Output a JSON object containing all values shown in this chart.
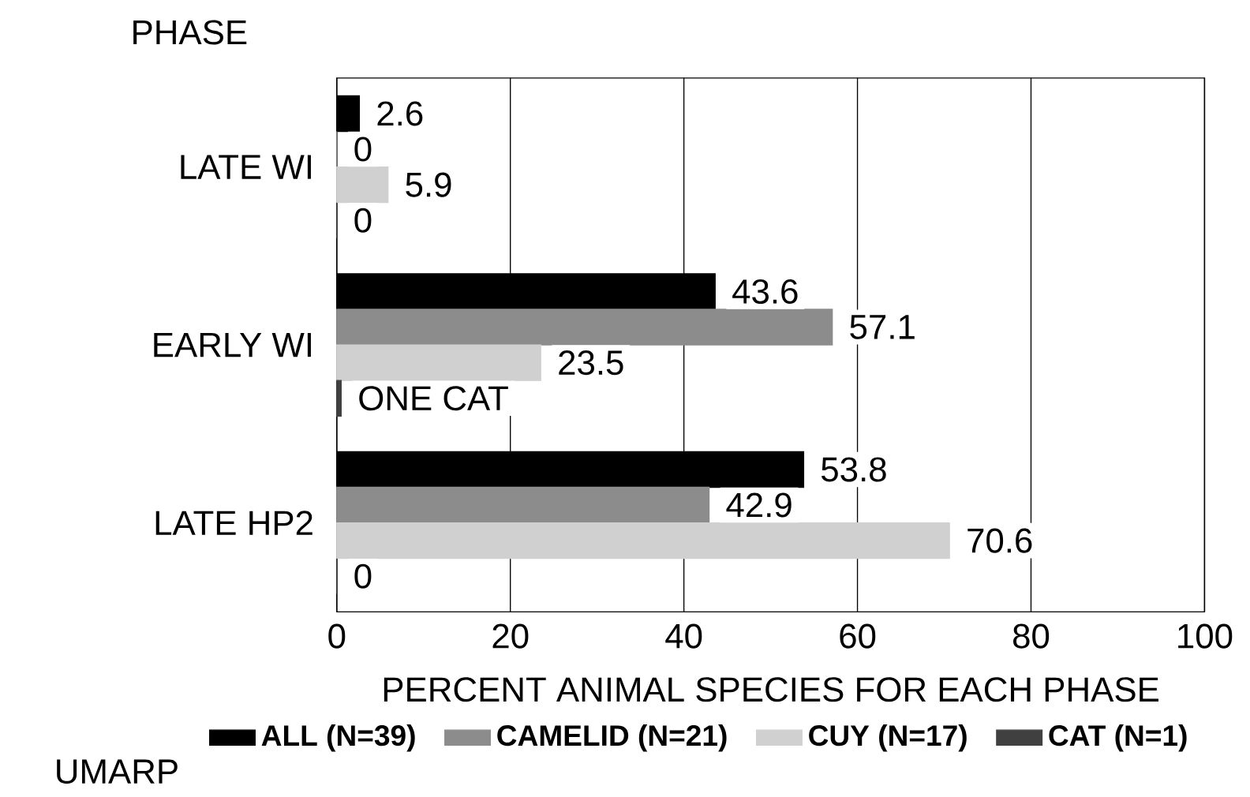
{
  "chart_data": {
    "type": "bar",
    "orientation": "horizontal",
    "ylabel": "PHASE",
    "xlabel": "PERCENT ANIMAL SPECIES FOR EACH PHASE",
    "categories": [
      "LATE WI",
      "EARLY WI",
      "LATE HP2"
    ],
    "series": [
      {
        "name": "ALL (N=39)",
        "color": "#000000",
        "values": [
          2.6,
          43.6,
          53.8
        ],
        "value_labels": [
          "2.6",
          "43.6",
          "53.8"
        ]
      },
      {
        "name": "CAMELID (N=21)",
        "color": "#8c8c8c",
        "values": [
          0,
          57.1,
          42.9
        ],
        "value_labels": [
          "0",
          "57.1",
          "42.9"
        ]
      },
      {
        "name": "CUY (N=17)",
        "color": "#d0d0d0",
        "values": [
          5.9,
          23.5,
          70.6
        ],
        "value_labels": [
          "5.9",
          "23.5",
          "70.6"
        ]
      },
      {
        "name": "CAT (N=1)",
        "color": "#404040",
        "values": [
          0,
          0.5,
          0
        ],
        "value_labels": [
          "0",
          "ONE CAT",
          "0"
        ]
      }
    ],
    "xlim": [
      0,
      100
    ],
    "xticks": [
      0,
      20,
      40,
      60,
      80,
      100
    ],
    "grid": "x",
    "legend": "bottom",
    "annotations": [
      "UMARP"
    ]
  }
}
